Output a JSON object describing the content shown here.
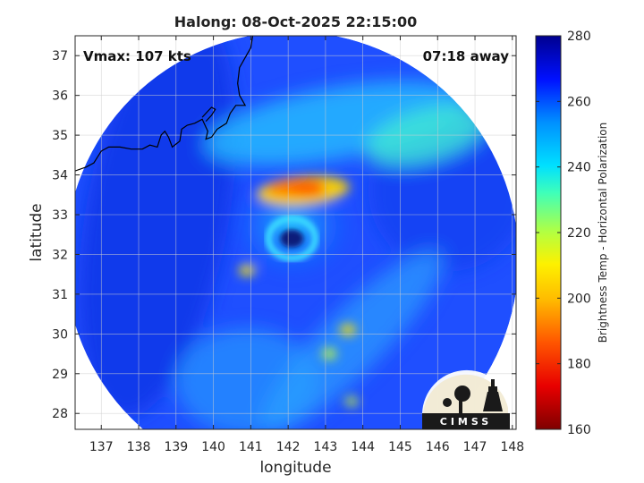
{
  "title": "Halong: 08-Oct-2025 22:15:00",
  "annotations": {
    "vmax": "Vmax: 107 kts",
    "away": "07:18 away"
  },
  "axes": {
    "xlabel": "longitude",
    "ylabel": "latitude",
    "xlim": [
      136.3,
      148.1
    ],
    "ylim": [
      27.6,
      37.5
    ],
    "xticks": [
      137,
      138,
      139,
      140,
      141,
      142,
      143,
      144,
      145,
      146,
      147,
      148
    ],
    "yticks": [
      28,
      29,
      30,
      31,
      32,
      33,
      34,
      35,
      36,
      37
    ],
    "grid": true
  },
  "colorbar": {
    "label": "Brightness Temp - Horizontal Polarization",
    "range": [
      160,
      280
    ],
    "ticks": [
      160,
      180,
      200,
      220,
      240,
      260,
      280
    ],
    "colormap": "jet",
    "placement": "right"
  },
  "storm": {
    "name": "Halong",
    "eye_lon": 142.1,
    "eye_lat": 32.4,
    "swath_center_lon": 142.1,
    "swath_center_lat": 31.9,
    "swath_radius_deg": 5.7
  },
  "logo": {
    "text": "CIMSS",
    "icon_name": "cimss-logo"
  },
  "colors": {
    "coastline": "#000000",
    "grid": "#cfcfcf",
    "eye": "#0a1a7a",
    "cold_core": "#ff6a00"
  }
}
